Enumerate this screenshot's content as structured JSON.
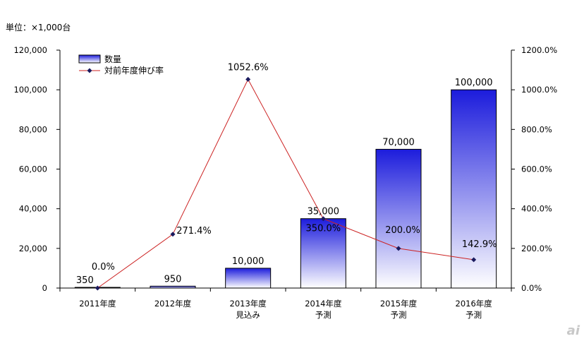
{
  "chart_data": {
    "type": "bar",
    "unit_label": "単位：×1,000台",
    "categories": [
      [
        "2011年度"
      ],
      [
        "2012年度"
      ],
      [
        "2013年度",
        "見込み"
      ],
      [
        "2014年度",
        "予測"
      ],
      [
        "2015年度",
        "予測"
      ],
      [
        "2016年度",
        "予測"
      ]
    ],
    "series": [
      {
        "name": "数量",
        "type": "bar",
        "axis": "left",
        "values": [
          350,
          950,
          10000,
          35000,
          70000,
          100000
        ],
        "labels": [
          "350",
          "950",
          "10,000",
          "35,000",
          "70,000",
          "100,000"
        ]
      },
      {
        "name": "対前年度伸び率",
        "type": "line",
        "axis": "right",
        "values": [
          0.0,
          271.4,
          1052.6,
          350.0,
          200.0,
          142.9
        ],
        "labels": [
          "0.0%",
          "271.4%",
          "1052.6%",
          "350.0%",
          "200.0%",
          "142.9%"
        ],
        "color": "#cc2222",
        "marker_color": "#1a1a5e"
      }
    ],
    "y_left": {
      "range": [
        0,
        120000
      ],
      "ticks": [
        "0",
        "20,000",
        "40,000",
        "60,000",
        "80,000",
        "100,000",
        "120,000"
      ]
    },
    "y_right": {
      "range": [
        0,
        1200
      ],
      "ticks": [
        "0.0%",
        "200.0%",
        "400.0%",
        "600.0%",
        "800.0%",
        "1000.0%",
        "1200.0%"
      ]
    },
    "legend": "top-left",
    "grid": false
  },
  "watermark": "ai"
}
